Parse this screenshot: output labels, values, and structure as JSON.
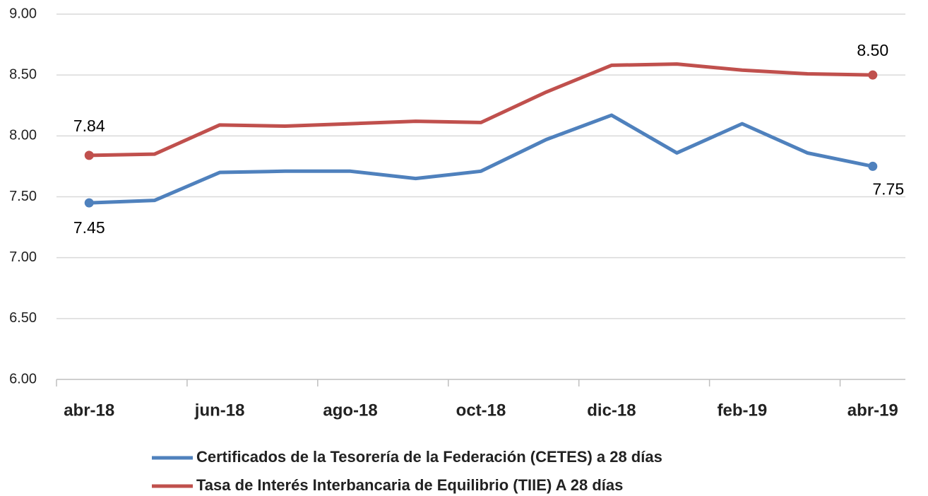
{
  "chart_data": {
    "type": "line",
    "categories": [
      "abr-18",
      null,
      "jun-18",
      null,
      "ago-18",
      null,
      "oct-18",
      null,
      "dic-18",
      null,
      "feb-19",
      null,
      "abr-19"
    ],
    "series": [
      {
        "name": "Certificados de la Tesorería de la Federación (CETES) a 28 días",
        "color": "#4f81bd",
        "values": [
          7.45,
          7.47,
          7.7,
          7.71,
          7.71,
          7.65,
          7.71,
          7.97,
          8.17,
          7.86,
          8.1,
          7.86,
          7.75
        ],
        "value_labels": [
          "7.45",
          null,
          null,
          null,
          null,
          null,
          null,
          null,
          null,
          null,
          null,
          null,
          "7.75"
        ]
      },
      {
        "name": "Tasa de Interés Interbancaria de Equilibrio (TIIE) A 28 días",
        "color": "#c0504d",
        "values": [
          7.84,
          7.85,
          8.09,
          8.08,
          8.1,
          8.12,
          8.11,
          8.36,
          8.58,
          8.59,
          8.54,
          8.51,
          8.5
        ],
        "value_labels": [
          "7.84",
          null,
          null,
          null,
          null,
          null,
          null,
          null,
          null,
          null,
          null,
          null,
          "8.50"
        ]
      }
    ],
    "ylim": [
      6,
      9
    ],
    "yticks": [
      {
        "value": 6,
        "label": "6.00"
      },
      {
        "value": 6.5,
        "label": "6.50"
      },
      {
        "value": 7,
        "label": "7.00"
      },
      {
        "value": 7.5,
        "label": "7.50"
      },
      {
        "value": 8,
        "label": "8.00"
      },
      {
        "value": 8.5,
        "label": "8.50"
      },
      {
        "value": 9,
        "label": "9.00"
      }
    ],
    "grid": true
  }
}
